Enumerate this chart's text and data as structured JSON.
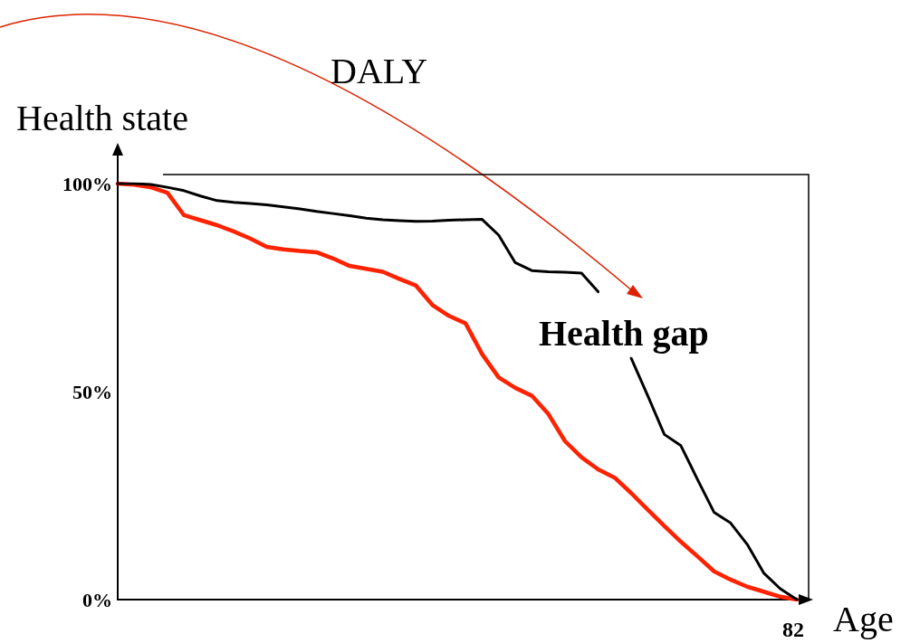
{
  "chart_data": {
    "type": "line",
    "xlabel": "Age",
    "ylabel": "Health state",
    "categories": [
      null,
      null,
      null,
      null,
      null,
      null,
      null,
      null,
      null,
      null,
      null,
      null,
      null,
      null,
      null,
      null,
      null,
      null,
      null,
      null,
      null,
      null,
      null,
      null,
      null,
      null,
      null,
      null,
      null,
      null,
      null,
      null,
      null,
      null,
      null,
      null,
      null,
      null,
      null,
      null,
      null,
      null
    ],
    "ylim": [
      0,
      100
    ],
    "yticks": [
      {
        "value": 0,
        "label": "0%"
      },
      {
        "value": 50,
        "label": "50%"
      },
      {
        "value": 100,
        "label": "100%"
      }
    ],
    "series": [
      {
        "color": "#000000",
        "values": [
          100,
          100,
          99.8,
          99.1,
          98.3,
          97,
          95.9,
          95.5,
          95.2,
          94.9,
          94.4,
          93.9,
          93.3,
          92.8,
          92.3,
          91.7,
          91.3,
          91.1,
          90.9,
          91,
          91.2,
          91.3,
          91.4,
          87.6,
          81,
          79.1,
          78.8,
          78.7,
          78.5,
          74,
          null,
          58,
          49,
          39.7,
          37,
          28.9,
          21,
          18.4,
          13.3,
          6.4,
          2.6,
          0
        ]
      },
      {
        "color": "#ff2200",
        "values": [
          100,
          99.7,
          99.1,
          97.8,
          92.4,
          91.2,
          90,
          88.5,
          86.8,
          84.8,
          84.2,
          83.8,
          83.5,
          82,
          80.2,
          79.5,
          78.8,
          77.1,
          75.5,
          70.8,
          68.2,
          66.4,
          59,
          53.4,
          50.9,
          49,
          44.6,
          38.1,
          34.2,
          31.3,
          29.3,
          25.6,
          21.6,
          17.7,
          13.9,
          10.4,
          6.8,
          4.8,
          3.1,
          1.9,
          0.7,
          0
        ]
      }
    ],
    "annotations": [
      "DALY",
      "Health gap",
      "82"
    ],
    "marker": "none",
    "line_style": "solid",
    "grid": false
  }
}
